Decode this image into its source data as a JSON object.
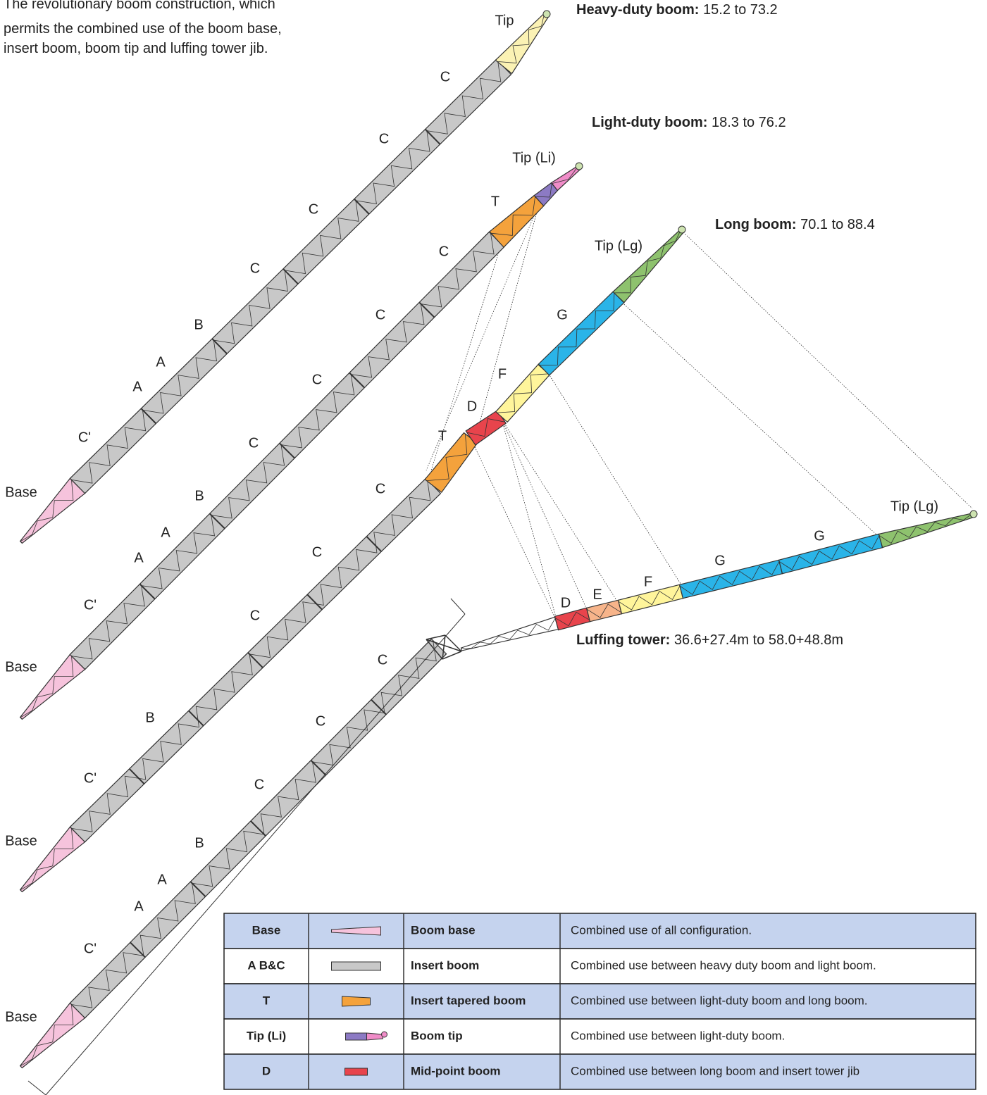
{
  "intro": [
    "The revolutionary boom construction, which",
    "permits the combined use of the boom base,",
    "insert boom, boom tip and luffing tower jib."
  ],
  "configurations": [
    {
      "name": "Heavy-duty boom:",
      "range": "15.2 to 73.2"
    },
    {
      "name": "Light-duty boom:",
      "range": "18.3 to 76.2"
    },
    {
      "name": "Long boom:",
      "range": "70.1 to 88.4"
    },
    {
      "name": "Luffing tower:",
      "range": "36.6+27.4m to 58.0+48.8m"
    }
  ],
  "booms": [
    {
      "labels": [
        "Base",
        "C'",
        "A",
        "A",
        "B",
        "C",
        "C",
        "C",
        "C",
        "Tip"
      ]
    },
    {
      "labels": [
        "Base",
        "C'",
        "A",
        "A",
        "B",
        "C",
        "C",
        "C",
        "C",
        "T",
        "Tip (Li)"
      ]
    },
    {
      "labels": [
        "Base",
        "C'",
        "B",
        "C",
        "C",
        "C",
        "T",
        "D",
        "F",
        "G",
        "Tip (Lg)"
      ]
    },
    {
      "labels": [
        "Base",
        "C'",
        "A",
        "A",
        "B",
        "C",
        "C",
        "C",
        "D",
        "E",
        "F",
        "G",
        "G",
        "Tip (Lg)"
      ]
    }
  ],
  "table": {
    "rows": [
      [
        "Base",
        "Boom base",
        "Combined use of all configuration."
      ],
      [
        "A B&C",
        "Insert boom",
        "Combined use between heavy duty boom and light boom."
      ],
      [
        "T",
        "Insert tapered boom",
        "Combined use between light-duty boom and long boom."
      ],
      [
        "Tip (Li)",
        "Boom tip",
        "Combined use between light-duty boom."
      ],
      [
        "D",
        "Mid-point boom",
        "Combined use between long boom and insert tower jib"
      ]
    ]
  }
}
